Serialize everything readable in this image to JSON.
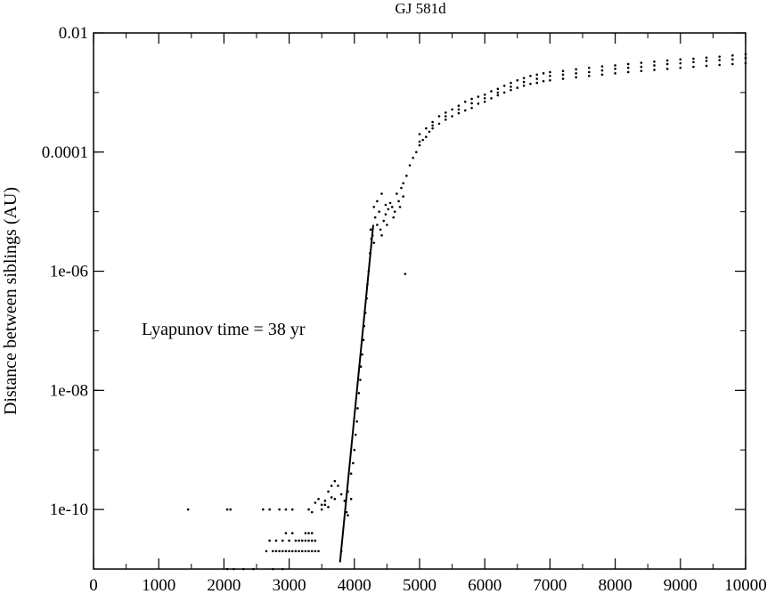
{
  "chart_data": {
    "type": "scatter",
    "title": "GJ 581d",
    "xlabel": "",
    "ylabel": "Distance between siblings  (AU)",
    "yscale": "log",
    "xlim": [
      0,
      10000
    ],
    "ylim": [
      1e-11,
      0.01
    ],
    "grid": false,
    "x_ticks": [
      0,
      1000,
      2000,
      3000,
      4000,
      5000,
      6000,
      7000,
      8000,
      9000,
      10000
    ],
    "x_tick_labels": [
      "0",
      "1000",
      "2000",
      "3000",
      "4000",
      "5000",
      "6000",
      "7000",
      "8000",
      "9000",
      "10000"
    ],
    "y_ticks": [
      1e-10,
      1e-08,
      1e-06,
      0.0001,
      0.01
    ],
    "y_tick_labels": [
      "1e-10",
      "1e-08",
      "1e-06",
      "0.0001",
      "0.01"
    ],
    "annotation": "Lyapunov time = 38 yr",
    "series": [
      {
        "kind": "scatter",
        "marker_color": "#000000",
        "points": [
          [
            1450,
            1e-10
          ],
          [
            2050,
            1e-10
          ],
          [
            2100,
            1e-10
          ],
          [
            2600,
            1e-10
          ],
          [
            2700,
            1e-10
          ],
          [
            2850,
            1e-10
          ],
          [
            2950,
            1e-10
          ],
          [
            3050,
            1e-10
          ],
          [
            3300,
            1e-10
          ],
          [
            2050,
            1e-11
          ],
          [
            2150,
            1e-11
          ],
          [
            2300,
            1e-11
          ],
          [
            2450,
            1e-11
          ],
          [
            2750,
            1e-11
          ],
          [
            2900,
            1e-11
          ],
          [
            2650,
            2e-11
          ],
          [
            2700,
            3e-11
          ],
          [
            2750,
            2e-11
          ],
          [
            2800,
            2e-11
          ],
          [
            2850,
            2e-11
          ],
          [
            2900,
            2e-11
          ],
          [
            2950,
            2e-11
          ],
          [
            3000,
            2e-11
          ],
          [
            3050,
            2e-11
          ],
          [
            3100,
            2e-11
          ],
          [
            3150,
            2e-11
          ],
          [
            3200,
            2e-11
          ],
          [
            3250,
            2e-11
          ],
          [
            3300,
            2e-11
          ],
          [
            3350,
            2e-11
          ],
          [
            3400,
            2e-11
          ],
          [
            3450,
            2e-11
          ],
          [
            2800,
            3e-11
          ],
          [
            2900,
            3e-11
          ],
          [
            3000,
            3e-11
          ],
          [
            3100,
            3e-11
          ],
          [
            3150,
            3e-11
          ],
          [
            3200,
            3e-11
          ],
          [
            3250,
            3e-11
          ],
          [
            3300,
            3e-11
          ],
          [
            3350,
            3e-11
          ],
          [
            3400,
            3e-11
          ],
          [
            2950,
            4e-11
          ],
          [
            3050,
            4e-11
          ],
          [
            3250,
            4e-11
          ],
          [
            3300,
            4e-11
          ],
          [
            3350,
            4e-11
          ],
          [
            3350,
            9e-11
          ],
          [
            3400,
            1.3e-10
          ],
          [
            3450,
            1.5e-10
          ],
          [
            3500,
            1.2e-10
          ],
          [
            3550,
            1.4e-10
          ],
          [
            3600,
            2e-10
          ],
          [
            3650,
            2.5e-10
          ],
          [
            3700,
            3e-10
          ],
          [
            3750,
            2.5e-10
          ],
          [
            3800,
            1.8e-10
          ],
          [
            3600,
            1.1e-10
          ],
          [
            3700,
            1.5e-10
          ],
          [
            3500,
            1e-10
          ],
          [
            3550,
            1.2e-10
          ],
          [
            3650,
            1.6e-10
          ],
          [
            3850,
            1.4e-10
          ],
          [
            3880,
            9e-11
          ],
          [
            3900,
            8e-11
          ],
          [
            3800,
            2e-11
          ],
          [
            3950,
            1.5e-10
          ],
          [
            3900,
            2e-10
          ],
          [
            3950,
            4e-10
          ],
          [
            3980,
            6e-10
          ],
          [
            4000,
            1e-09
          ],
          [
            4020,
            1.8e-09
          ],
          [
            4040,
            3e-09
          ],
          [
            4050,
            5e-09
          ],
          [
            4070,
            9e-09
          ],
          [
            4090,
            1.5e-08
          ],
          [
            4100,
            2.5e-08
          ],
          [
            4120,
            4e-08
          ],
          [
            4140,
            7e-08
          ],
          [
            4150,
            1.2e-07
          ],
          [
            4170,
            2e-07
          ],
          [
            4190,
            3.5e-07
          ],
          [
            4200,
            6e-07
          ],
          [
            4220,
            1e-06
          ],
          [
            4240,
            2e-06
          ],
          [
            4260,
            3.5e-06
          ],
          [
            4250,
            5e-06
          ],
          [
            4280,
            4e-06
          ],
          [
            4300,
            3e-06
          ],
          [
            4320,
            8e-06
          ],
          [
            4350,
            6e-06
          ],
          [
            4380,
            1e-05
          ],
          [
            4400,
            5e-06
          ],
          [
            4420,
            4e-06
          ],
          [
            4450,
            7e-06
          ],
          [
            4480,
            9e-06
          ],
          [
            4500,
            6e-06
          ],
          [
            4520,
            1.1e-05
          ],
          [
            4550,
            1.4e-05
          ],
          [
            4580,
            1.2e-05
          ],
          [
            4600,
            8e-06
          ],
          [
            4620,
            1e-05
          ],
          [
            4650,
            2e-05
          ],
          [
            4680,
            1.5e-05
          ],
          [
            4700,
            1.2e-05
          ],
          [
            4720,
            2.5e-05
          ],
          [
            4750,
            1.8e-05
          ],
          [
            4780,
            9e-07
          ],
          [
            4350,
            1.5e-05
          ],
          [
            4300,
            1.2e-05
          ],
          [
            4420,
            2e-05
          ],
          [
            4480,
            1.3e-05
          ],
          [
            4750,
            3e-05
          ],
          [
            4800,
            4e-05
          ],
          [
            4850,
            6e-05
          ],
          [
            4900,
            8e-05
          ],
          [
            4950,
            0.0001
          ],
          [
            5000,
            0.00013
          ],
          [
            5050,
            0.00016
          ],
          [
            5100,
            0.00018
          ],
          [
            5150,
            0.00022
          ],
          [
            5200,
            0.00025
          ],
          [
            5300,
            0.0003
          ],
          [
            5400,
            0.00035
          ],
          [
            5500,
            0.0004
          ],
          [
            5600,
            0.00045
          ],
          [
            5700,
            0.0005
          ],
          [
            5800,
            0.00055
          ],
          [
            5900,
            0.00065
          ],
          [
            6000,
            0.0007
          ],
          [
            6100,
            0.0008
          ],
          [
            6200,
            0.0009
          ],
          [
            6300,
            0.001
          ],
          [
            6400,
            0.0011
          ],
          [
            6500,
            0.0012
          ],
          [
            6600,
            0.0013
          ],
          [
            6700,
            0.0014
          ],
          [
            6800,
            0.00145
          ],
          [
            6900,
            0.00155
          ],
          [
            7000,
            0.0016
          ],
          [
            7200,
            0.0017
          ],
          [
            7400,
            0.0018
          ],
          [
            7600,
            0.0019
          ],
          [
            7800,
            0.002
          ],
          [
            8000,
            0.0021
          ],
          [
            8200,
            0.0022
          ],
          [
            8400,
            0.0023
          ],
          [
            8600,
            0.0024
          ],
          [
            8800,
            0.0025
          ],
          [
            9000,
            0.0026
          ],
          [
            9200,
            0.0027
          ],
          [
            9400,
            0.0028
          ],
          [
            9600,
            0.0029
          ],
          [
            9800,
            0.003
          ],
          [
            10000,
            0.0031
          ],
          [
            5000,
            0.0002
          ],
          [
            5100,
            0.00025
          ],
          [
            5200,
            0.00032
          ],
          [
            5300,
            0.0004
          ],
          [
            5400,
            0.00046
          ],
          [
            5500,
            0.00052
          ],
          [
            5600,
            0.0006
          ],
          [
            5700,
            0.0007
          ],
          [
            5800,
            0.00078
          ],
          [
            5900,
            0.00085
          ],
          [
            6000,
            0.00092
          ],
          [
            6100,
            0.00105
          ],
          [
            6200,
            0.00115
          ],
          [
            6300,
            0.0013
          ],
          [
            6400,
            0.00145
          ],
          [
            6500,
            0.0016
          ],
          [
            6600,
            0.00175
          ],
          [
            6700,
            0.0019
          ],
          [
            6800,
            0.002
          ],
          [
            6900,
            0.0021
          ],
          [
            7000,
            0.0022
          ],
          [
            7200,
            0.0023
          ],
          [
            7400,
            0.00245
          ],
          [
            7600,
            0.0026
          ],
          [
            7800,
            0.00275
          ],
          [
            8000,
            0.00285
          ],
          [
            8200,
            0.003
          ],
          [
            8400,
            0.00315
          ],
          [
            8600,
            0.0033
          ],
          [
            8800,
            0.00345
          ],
          [
            9000,
            0.0036
          ],
          [
            9200,
            0.0037
          ],
          [
            9400,
            0.00385
          ],
          [
            9600,
            0.004
          ],
          [
            9800,
            0.0042
          ],
          [
            10000,
            0.0044
          ],
          [
            5000,
            0.00015
          ],
          [
            5200,
            0.00028
          ],
          [
            5400,
            0.0004
          ],
          [
            5600,
            0.00052
          ],
          [
            5800,
            0.00066
          ],
          [
            6000,
            0.0008
          ],
          [
            6200,
            0.001
          ],
          [
            6400,
            0.00125
          ],
          [
            6600,
            0.0015
          ],
          [
            6800,
            0.0017
          ],
          [
            7000,
            0.0019
          ],
          [
            7200,
            0.002
          ],
          [
            7400,
            0.0021
          ],
          [
            7600,
            0.0022
          ],
          [
            7800,
            0.00235
          ],
          [
            8000,
            0.0025
          ],
          [
            8200,
            0.0026
          ],
          [
            8400,
            0.0027
          ],
          [
            8600,
            0.00285
          ],
          [
            8800,
            0.003
          ],
          [
            9000,
            0.0031
          ],
          [
            9200,
            0.00325
          ],
          [
            9400,
            0.0034
          ],
          [
            9600,
            0.0035
          ],
          [
            9800,
            0.0036
          ],
          [
            10000,
            0.0038
          ]
        ]
      },
      {
        "kind": "line",
        "stroke_color": "#000000",
        "points": [
          [
            3780,
            1.3e-11
          ],
          [
            4290,
            6e-06
          ]
        ]
      }
    ]
  }
}
